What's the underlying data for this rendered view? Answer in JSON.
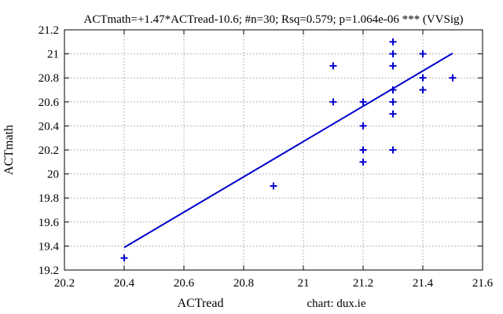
{
  "chart_data": {
    "type": "scatter",
    "title": "ACTmath=+1.47*ACTread-10.6; #n=30; Rsq=0.579; p=1.064e-06 *** (VVSig)",
    "xlabel": "ACTread",
    "ylabel": "ACTmath",
    "credit": "chart: dux.ie",
    "xlim": [
      20.2,
      21.6
    ],
    "ylim": [
      19.2,
      21.2
    ],
    "xticks": [
      "20.2",
      "20.4",
      "20.6",
      "20.8",
      "21",
      "21.2",
      "21.4",
      "21.6"
    ],
    "yticks": [
      "19.2",
      "19.4",
      "19.6",
      "19.8",
      "20",
      "20.2",
      "20.4",
      "20.6",
      "20.8",
      "21",
      "21.2"
    ],
    "grid": true,
    "marker_color": "#0000cc",
    "points": [
      {
        "x": 20.4,
        "y": 19.3
      },
      {
        "x": 20.9,
        "y": 19.9
      },
      {
        "x": 21.1,
        "y": 20.9
      },
      {
        "x": 21.1,
        "y": 20.6
      },
      {
        "x": 21.2,
        "y": 20.6
      },
      {
        "x": 21.2,
        "y": 20.4
      },
      {
        "x": 21.2,
        "y": 20.2
      },
      {
        "x": 21.2,
        "y": 20.1
      },
      {
        "x": 21.3,
        "y": 21.1
      },
      {
        "x": 21.3,
        "y": 21.0
      },
      {
        "x": 21.3,
        "y": 20.9
      },
      {
        "x": 21.3,
        "y": 20.7
      },
      {
        "x": 21.3,
        "y": 20.6
      },
      {
        "x": 21.3,
        "y": 20.5
      },
      {
        "x": 21.3,
        "y": 20.2
      },
      {
        "x": 21.4,
        "y": 21.0
      },
      {
        "x": 21.4,
        "y": 20.8
      },
      {
        "x": 21.4,
        "y": 20.7
      },
      {
        "x": 21.5,
        "y": 20.8
      }
    ],
    "fit_line": {
      "slope": 1.47,
      "intercept": -10.6,
      "x_range": [
        20.4,
        21.5
      ]
    }
  }
}
